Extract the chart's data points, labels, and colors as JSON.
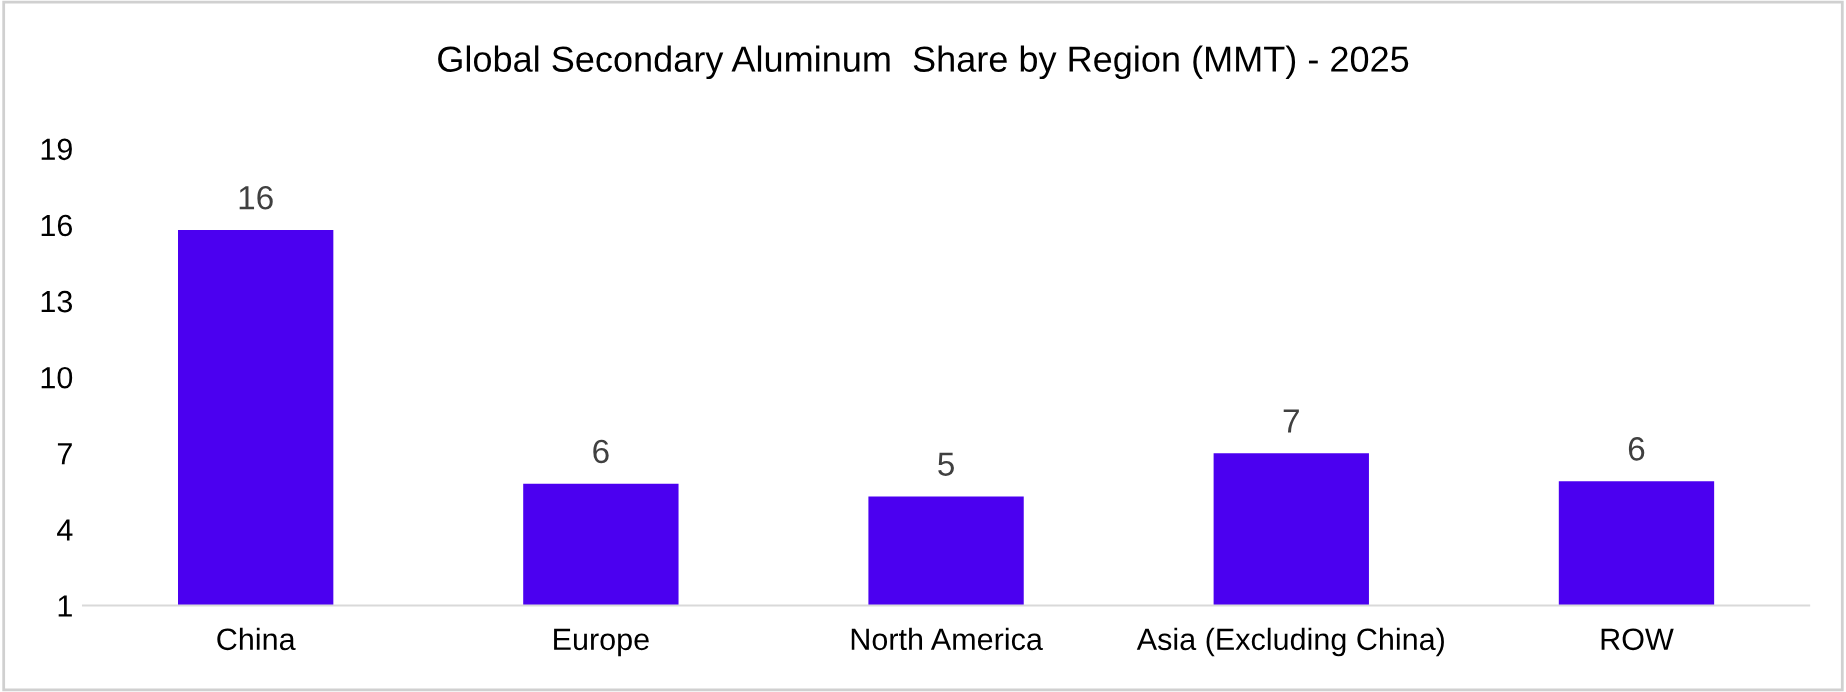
{
  "chart_data": {
    "type": "bar",
    "title": "Global Secondary Aluminum  Share by Region (MMT) - 2025",
    "categories": [
      "China",
      "Europe",
      "North America",
      "Asia (Excluding China)",
      "ROW"
    ],
    "values": [
      15.8,
      5.8,
      5.3,
      7.0,
      5.9
    ],
    "value_labels": [
      "16",
      "6",
      "5",
      "7",
      "6"
    ],
    "color": "#4b00f0",
    "ylim": [
      1,
      19
    ],
    "yticks": [
      1,
      4,
      7,
      10,
      13,
      16,
      19
    ],
    "grid": false,
    "legend": false
  }
}
